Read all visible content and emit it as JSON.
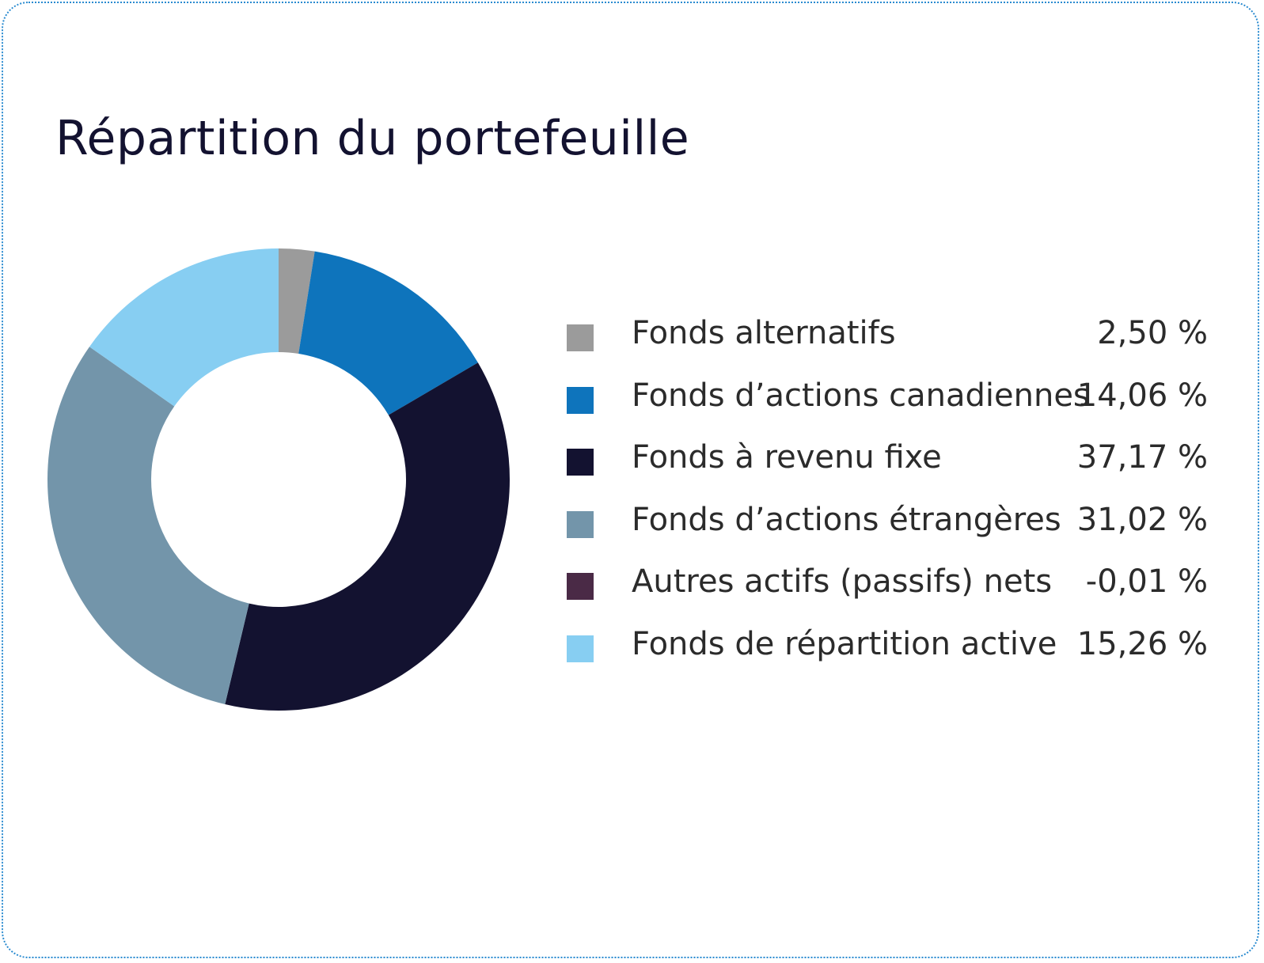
{
  "chart_data": {
    "type": "pie",
    "title": "Répartition du portefeuille",
    "donut": true,
    "categories": [
      "Fonds alternatifs",
      "Fonds d’actions canadiennes",
      "Fonds à revenu fixe",
      "Fonds d’actions étrangères",
      "Autres actifs (passifs) nets",
      "Fonds de répartition active"
    ],
    "values": [
      2.5,
      14.06,
      37.17,
      31.02,
      -0.01,
      15.26
    ],
    "value_labels": [
      "2,50 %",
      "14,06 %",
      "37,17 %",
      "31,02 %",
      "-0,01 %",
      "15,26 %"
    ],
    "colors": [
      "#9b9b9b",
      "#0e74bc",
      "#131230",
      "#7395aa",
      "#4a2a46",
      "#87cef2"
    ],
    "legend_position": "right"
  }
}
